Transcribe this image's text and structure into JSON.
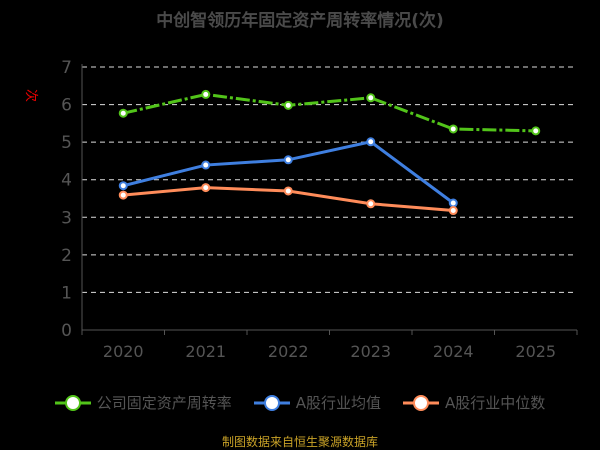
{
  "chart_data": {
    "type": "line",
    "title": "中创智领历年固定资产周转率情况(次)",
    "ylabel": "次",
    "xlabel": "",
    "categories": [
      "2020",
      "2021",
      "2022",
      "2023",
      "2024",
      "2025"
    ],
    "ylim": [
      0,
      7
    ],
    "yticks": [
      0,
      1,
      2,
      3,
      4,
      5,
      6,
      7
    ],
    "grid": true,
    "legend_position": "bottom",
    "series": [
      {
        "name": "公司固定资产周转率",
        "color": "#52c41a",
        "dash": "dash-dot",
        "values": [
          5.77,
          6.27,
          5.98,
          6.18,
          5.35,
          5.3
        ]
      },
      {
        "name": "A股行业均值",
        "color": "#3f7fe0",
        "dash": "solid",
        "values": [
          3.84,
          4.39,
          4.53,
          5.01,
          3.38,
          null
        ]
      },
      {
        "name": "A股行业中位数",
        "color": "#ff8c5a",
        "dash": "solid",
        "values": [
          3.59,
          3.79,
          3.7,
          3.36,
          3.18,
          null
        ]
      }
    ]
  },
  "footer": "制图数据来自恒生聚源数据库"
}
